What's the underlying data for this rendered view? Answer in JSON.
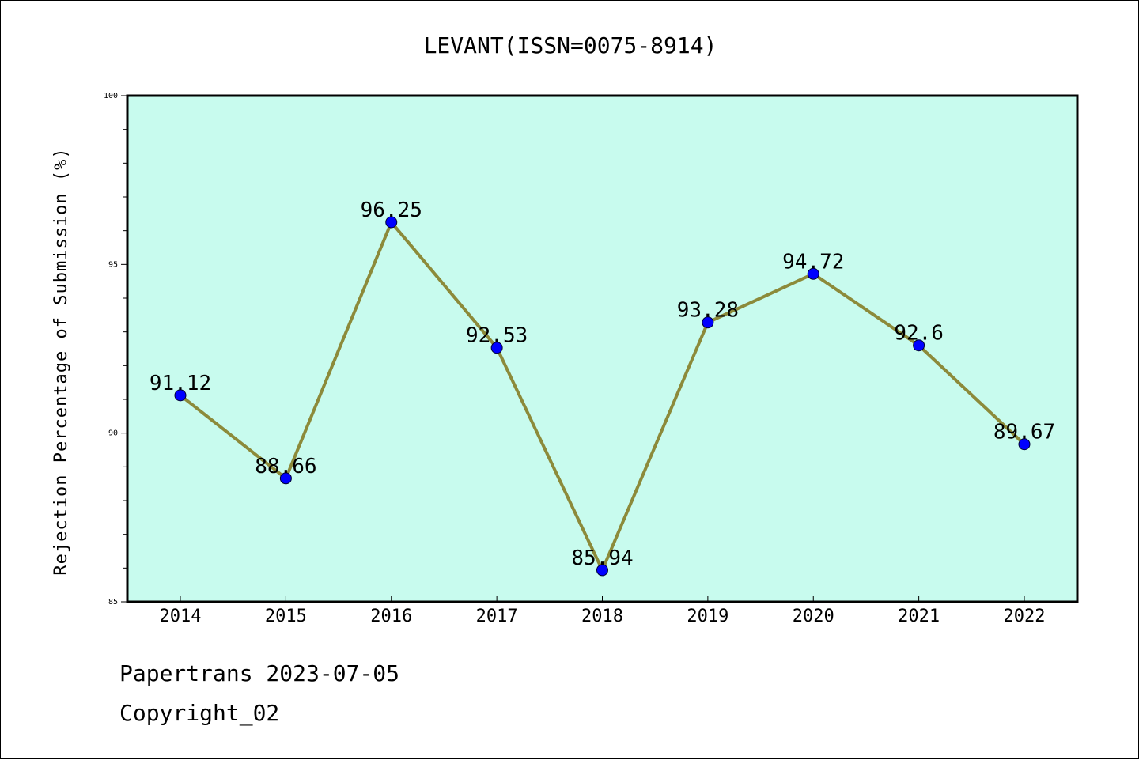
{
  "chart_data": {
    "type": "line",
    "title": "LEVANT(ISSN=0075-8914)",
    "xlabel": "",
    "ylabel": "Rejection Percentage of Submission (%)",
    "categories": [
      "2014",
      "2015",
      "2016",
      "2017",
      "2018",
      "2019",
      "2020",
      "2021",
      "2022"
    ],
    "series": [
      {
        "values": [
          91.12,
          88.66,
          96.25,
          92.53,
          85.94,
          93.28,
          94.72,
          92.6,
          89.67
        ],
        "data_labels": [
          "91.12",
          "88.66",
          "96.25",
          "92.53",
          "85.94",
          "93.28",
          "94.72",
          "92.6",
          "89.67"
        ]
      }
    ],
    "ylim": [
      85,
      100
    ],
    "yticks": [
      "85",
      "90",
      "95",
      "100"
    ],
    "grid": false,
    "colors": {
      "plot_background": "#c8fbee",
      "line": "#8c8a3a",
      "marker": "#0000ff"
    }
  },
  "footer": {
    "line1": "Papertrans 2023-07-05",
    "line2": "Copyright_02"
  }
}
